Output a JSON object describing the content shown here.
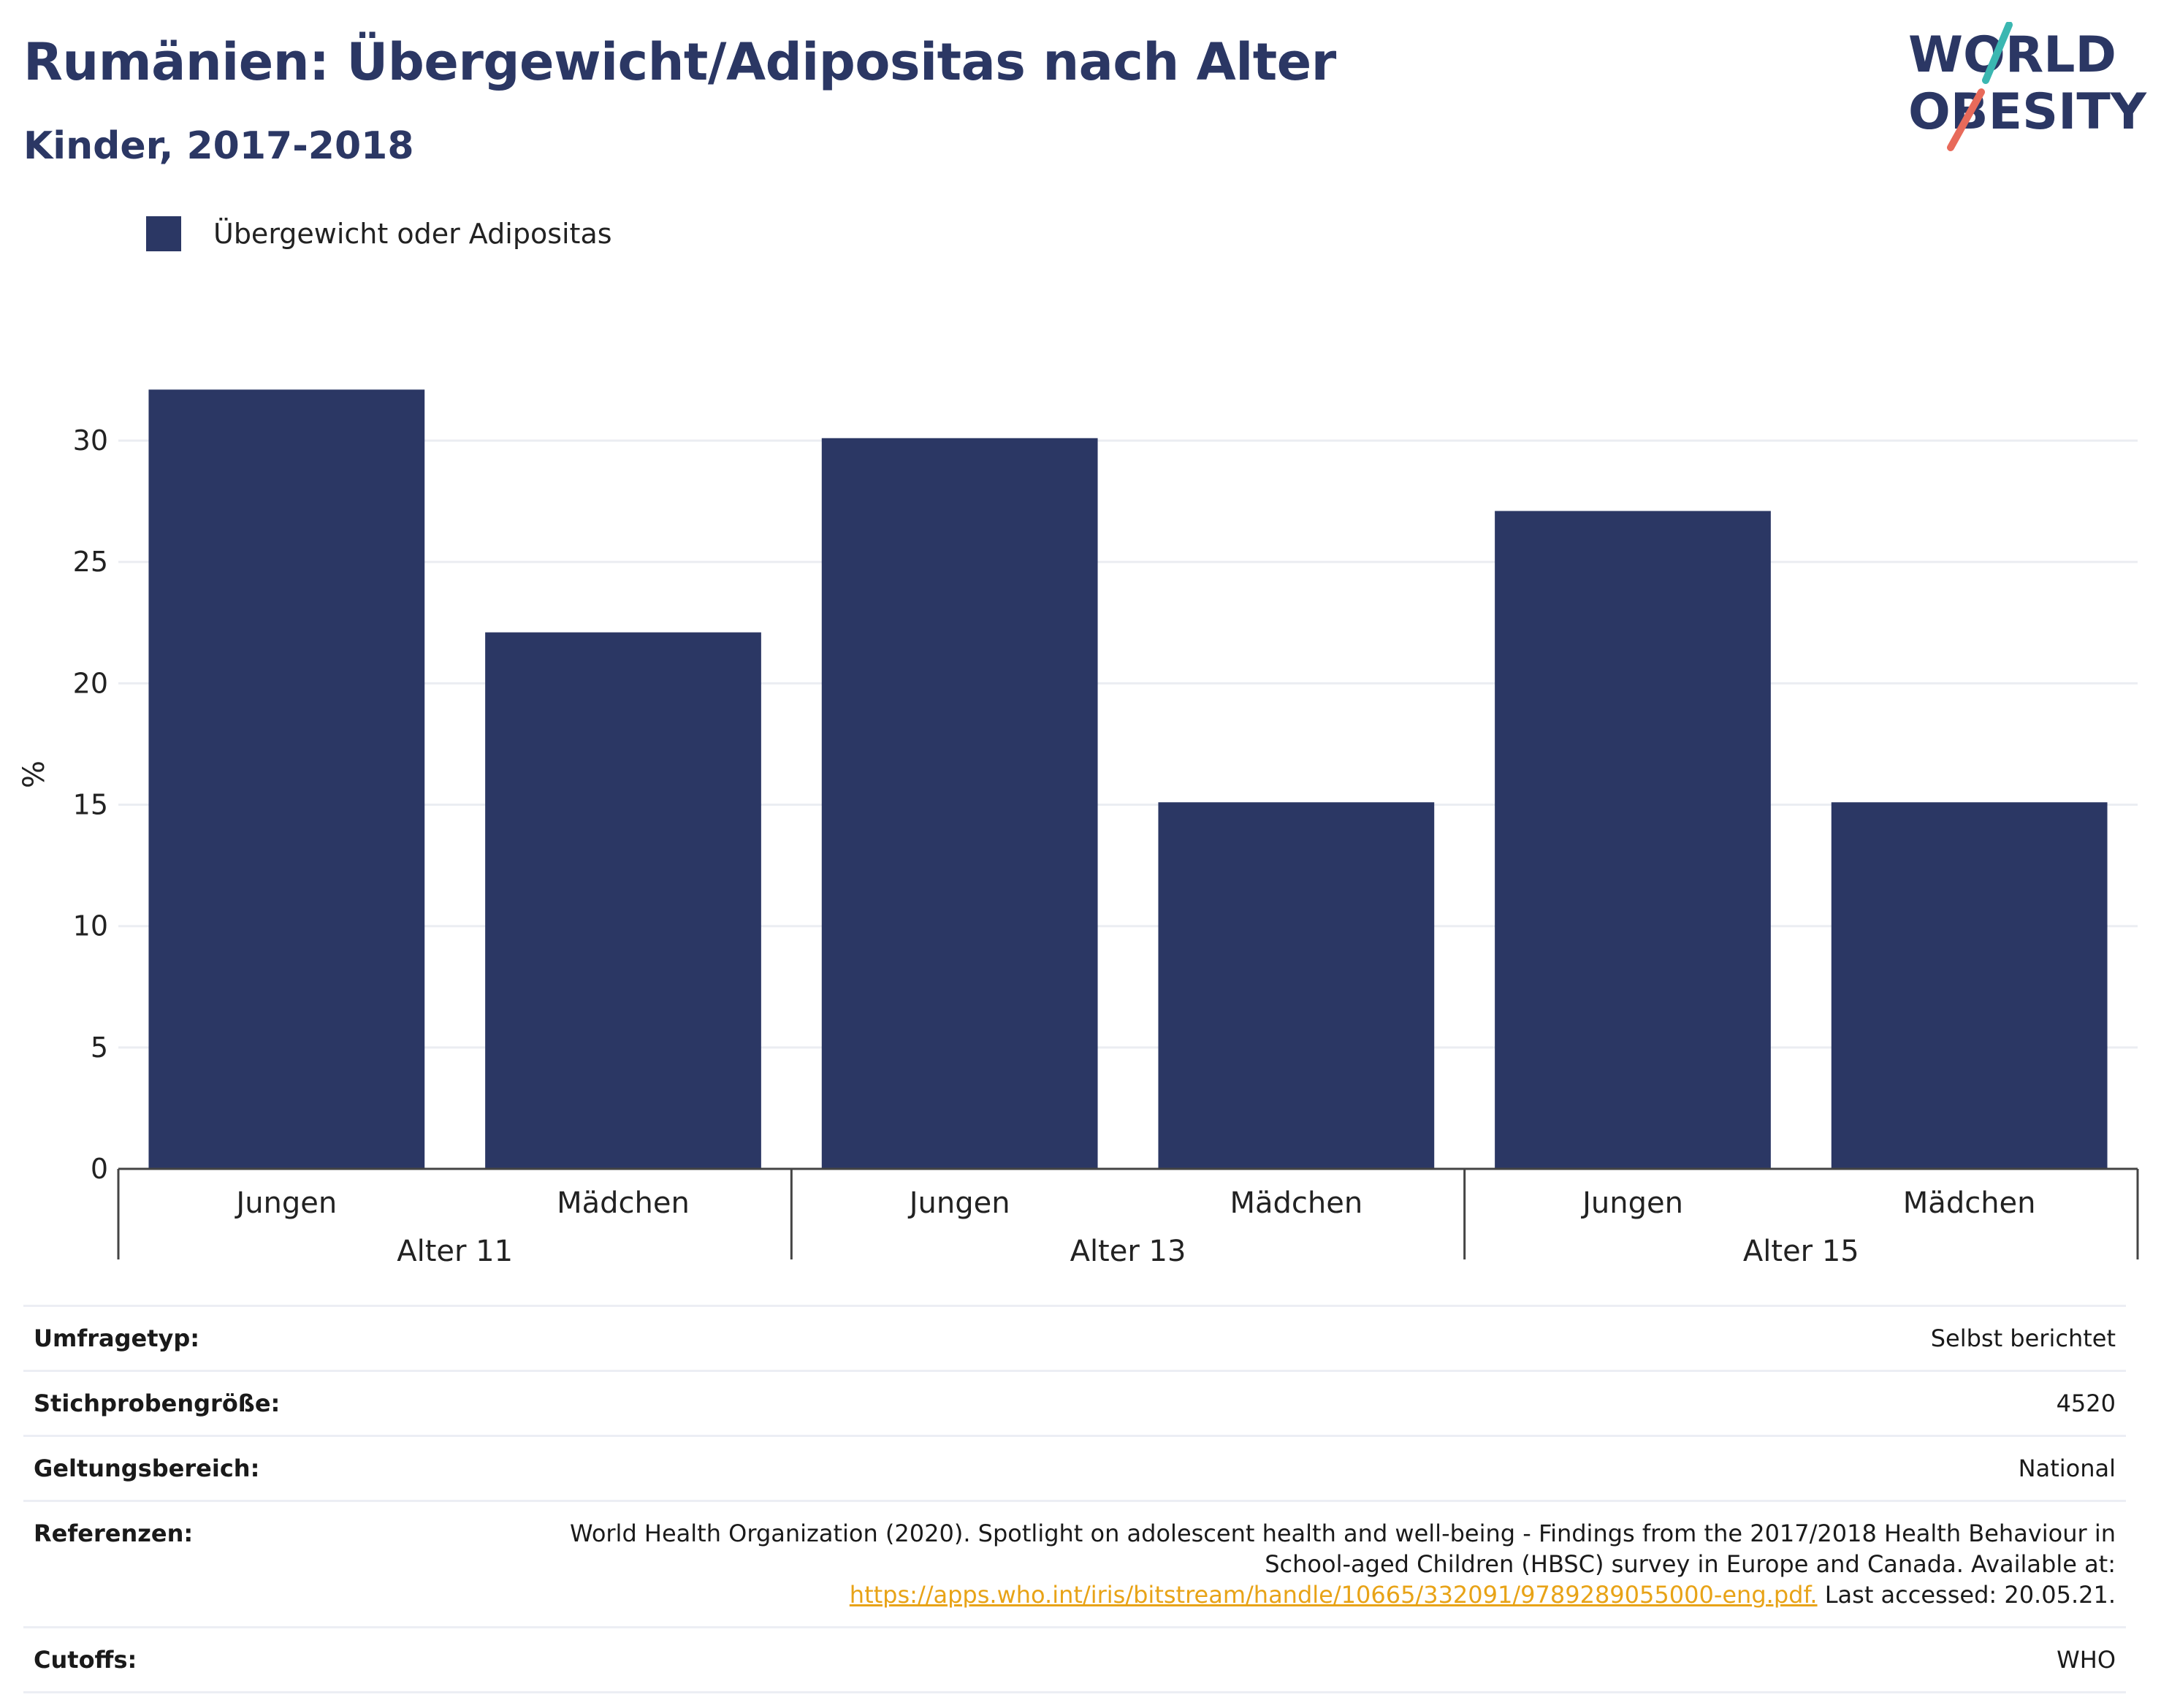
{
  "header": {
    "title": "Rumänien: Übergewicht/Adipositas nach Alter",
    "subtitle": "Kinder, 2017-2018"
  },
  "logo": {
    "line1": "WORLD",
    "line2": "OBESITY",
    "colors": {
      "text": "#2b3764",
      "slash_top": "#3bb7b1",
      "slash_bottom": "#e86a5a"
    }
  },
  "legend": {
    "label": "Übergewicht oder Adipositas",
    "color": "#2b3764"
  },
  "chart_data": {
    "type": "bar",
    "title": "Rumänien: Übergewicht/Adipositas nach Alter",
    "subtitle": "Kinder, 2017-2018",
    "ylabel": "%",
    "xlabel": "",
    "ylim": [
      0,
      32.5
    ],
    "yticks": [
      0,
      5,
      10,
      15,
      20,
      25,
      30
    ],
    "grid": true,
    "legend_position": "top-left",
    "bar_color": "#2b3764",
    "groups": [
      {
        "label": "Alter 11",
        "categories": [
          "Jungen",
          "Mädchen"
        ],
        "values": [
          32.1,
          22.1
        ]
      },
      {
        "label": "Alter 13",
        "categories": [
          "Jungen",
          "Mädchen"
        ],
        "values": [
          30.1,
          15.1
        ]
      },
      {
        "label": "Alter 15",
        "categories": [
          "Jungen",
          "Mädchen"
        ],
        "values": [
          27.1,
          15.1
        ]
      }
    ],
    "series": [
      {
        "name": "Übergewicht oder Adipositas",
        "values": [
          32.1,
          22.1,
          30.1,
          15.1,
          27.1,
          15.1
        ]
      }
    ]
  },
  "info": {
    "rows": [
      {
        "key": "Umfragetyp:",
        "value": "Selbst berichtet"
      },
      {
        "key": "Stichprobengröße:",
        "value": "4520"
      },
      {
        "key": "Geltungsbereich:",
        "value": "National"
      },
      {
        "key": "Referenzen:",
        "value_line1": "World Health Organization (2020). Spotlight on adolescent health and well-being - Findings from the 2017/2018 Health Behaviour in",
        "value_line2": "School-aged Children (HBSC) survey in Europe and Canada. Available at:",
        "link": "https://apps.who.int/iris/bitstream/handle/10665/332091/9789289055000-eng.pdf.",
        "value_after_link": " Last accessed: 20.05.21.",
        "link_color": "#e8a317"
      },
      {
        "key": "Cutoffs:",
        "value": "WHO"
      }
    ]
  }
}
